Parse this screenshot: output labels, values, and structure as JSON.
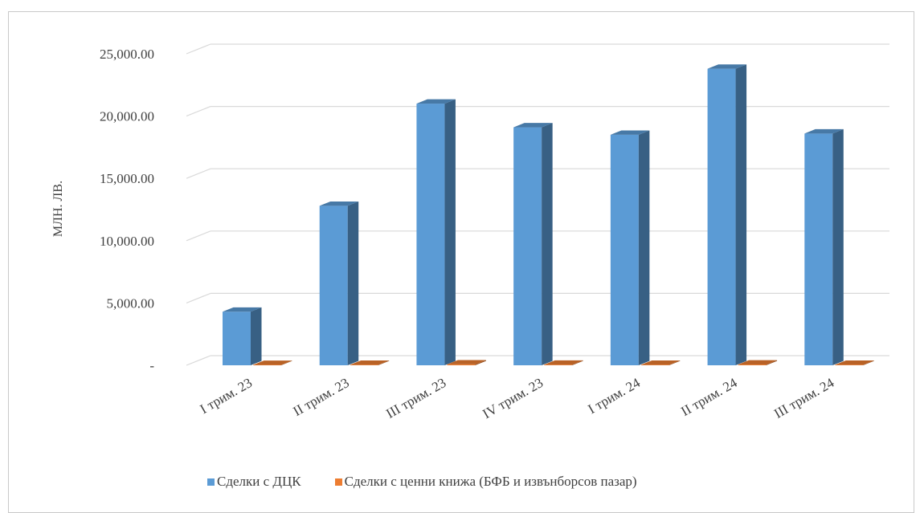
{
  "chart_data": {
    "type": "bar",
    "ylabel": "МЛН. ЛВ.",
    "ylim": [
      0,
      25000
    ],
    "yticks": [
      "-",
      "5,000.00",
      "10,000.00",
      "15,000.00",
      "20,000.00",
      "25,000.00"
    ],
    "categories": [
      "I трим. 23",
      "II трим. 23",
      "III трим. 23",
      "IV трим. 23",
      "I трим. 24",
      "II трим. 24",
      "III трим. 24"
    ],
    "series": [
      {
        "name": "Сделки с ДЦК",
        "color": "#5b9bd5",
        "values": [
          4300,
          12800,
          21000,
          19100,
          18500,
          23800,
          18600
        ]
      },
      {
        "name": "Сделки с ценни книжа (БФБ и извънборсов пазар)",
        "color": "#ed7d31",
        "values": [
          30,
          40,
          70,
          50,
          40,
          60,
          40
        ]
      }
    ],
    "grid": true,
    "legend_position": "bottom",
    "style": "3d-clustered-column"
  }
}
